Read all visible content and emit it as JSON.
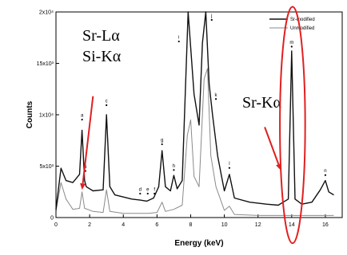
{
  "chart_data": {
    "type": "line",
    "xlabel": "Energy (keV)",
    "ylabel": "Counts",
    "xlim": [
      0,
      17
    ],
    "ylim": [
      0,
      20000
    ],
    "x_ticks": [
      "0",
      "2",
      "4",
      "6",
      "8",
      "10",
      "12",
      "14",
      "16"
    ],
    "x_tick_values": [
      0,
      2,
      4,
      6,
      8,
      10,
      12,
      14,
      16
    ],
    "y_ticks": [
      "0",
      "5x10³",
      "1x10⁴",
      "15x10³",
      "2x10⁴"
    ],
    "y_tick_values": [
      0,
      5000,
      10000,
      15000,
      20000
    ],
    "legend": {
      "position": "top-right"
    },
    "series": [
      {
        "name": "Sr-modified",
        "color": "#111111",
        "width": 1.4,
        "points": [
          [
            0,
            800
          ],
          [
            0.3,
            4800
          ],
          [
            0.6,
            3600
          ],
          [
            1.0,
            3400
          ],
          [
            1.4,
            4200
          ],
          [
            1.55,
            8500
          ],
          [
            1.7,
            3600
          ],
          [
            1.8,
            3000
          ],
          [
            2.2,
            2600
          ],
          [
            2.8,
            2700
          ],
          [
            3.0,
            10000
          ],
          [
            3.2,
            3000
          ],
          [
            3.5,
            2200
          ],
          [
            4.5,
            1800
          ],
          [
            5.0,
            1700
          ],
          [
            5.4,
            1600
          ],
          [
            5.8,
            1900
          ],
          [
            6.1,
            3000
          ],
          [
            6.3,
            6500
          ],
          [
            6.5,
            3000
          ],
          [
            6.8,
            2600
          ],
          [
            7.0,
            4100
          ],
          [
            7.2,
            2800
          ],
          [
            7.5,
            3600
          ],
          [
            7.85,
            20000
          ],
          [
            8.2,
            12000
          ],
          [
            8.5,
            9000
          ],
          [
            8.7,
            17000
          ],
          [
            8.9,
            20000
          ],
          [
            9.1,
            13000
          ],
          [
            9.3,
            10000
          ],
          [
            9.6,
            6000
          ],
          [
            10.0,
            2600
          ],
          [
            10.3,
            4200
          ],
          [
            10.6,
            1900
          ],
          [
            11.5,
            1500
          ],
          [
            12.5,
            1300
          ],
          [
            13.2,
            1200
          ],
          [
            13.8,
            1800
          ],
          [
            14.0,
            16200
          ],
          [
            14.2,
            1800
          ],
          [
            14.6,
            1300
          ],
          [
            15.2,
            1500
          ],
          [
            15.7,
            2700
          ],
          [
            16.0,
            3600
          ],
          [
            16.2,
            2500
          ],
          [
            16.5,
            2200
          ]
        ]
      },
      {
        "name": "Unmodified",
        "color": "#8a8a8a",
        "width": 1.0,
        "points": [
          [
            0,
            600
          ],
          [
            0.3,
            3400
          ],
          [
            0.6,
            1800
          ],
          [
            1.0,
            800
          ],
          [
            1.4,
            900
          ],
          [
            1.55,
            2500
          ],
          [
            1.7,
            900
          ],
          [
            2.2,
            600
          ],
          [
            2.8,
            500
          ],
          [
            3.0,
            2700
          ],
          [
            3.2,
            600
          ],
          [
            4.0,
            400
          ],
          [
            5.5,
            400
          ],
          [
            6.0,
            500
          ],
          [
            6.3,
            1500
          ],
          [
            6.5,
            600
          ],
          [
            7.0,
            800
          ],
          [
            7.5,
            1200
          ],
          [
            7.8,
            8000
          ],
          [
            8.0,
            9500
          ],
          [
            8.2,
            4000
          ],
          [
            8.5,
            3000
          ],
          [
            8.8,
            13500
          ],
          [
            9.0,
            14500
          ],
          [
            9.2,
            6000
          ],
          [
            9.5,
            3000
          ],
          [
            10.0,
            700
          ],
          [
            10.3,
            1100
          ],
          [
            10.6,
            300
          ],
          [
            12.0,
            200
          ],
          [
            14.0,
            200
          ],
          [
            16.0,
            200
          ],
          [
            16.5,
            200
          ]
        ]
      }
    ],
    "peak_labels": [
      {
        "text": "a",
        "x": 1.55,
        "y": 9800
      },
      {
        "text": "b",
        "x": 1.75,
        "y": 4800
      },
      {
        "text": "c",
        "x": 3.0,
        "y": 11200
      },
      {
        "text": "d",
        "x": 5.0,
        "y": 2600
      },
      {
        "text": "e",
        "x": 5.45,
        "y": 2600
      },
      {
        "text": "f",
        "x": 5.85,
        "y": 2600
      },
      {
        "text": "g",
        "x": 6.3,
        "y": 7400
      },
      {
        "text": "h",
        "x": 7.0,
        "y": 4900
      },
      {
        "text": "i",
        "x": 7.3,
        "y": 17400
      },
      {
        "text": "j",
        "x": 9.25,
        "y": 19500
      },
      {
        "text": "k",
        "x": 9.5,
        "y": 11800
      },
      {
        "text": "l",
        "x": 10.3,
        "y": 5100
      },
      {
        "text": "m",
        "x": 14.0,
        "y": 16900
      },
      {
        "text": "n",
        "x": 16.0,
        "y": 4400
      }
    ],
    "annotations": [
      {
        "text": "Sr-Lα"
      },
      {
        "text": "Si-Kα"
      },
      {
        "text": "Sr-Kα"
      }
    ],
    "highlight_ellipse": {
      "cx": 14.05,
      "cy": 9000,
      "rx": 0.75,
      "ry": 11500,
      "color": "#e02020"
    },
    "arrows": [
      {
        "from": [
          2.2,
          11800
        ],
        "to": [
          1.55,
          2700
        ],
        "color": "#e02020"
      },
      {
        "from": [
          12.4,
          8800
        ],
        "to": [
          13.35,
          4600
        ],
        "color": "#e02020"
      }
    ]
  }
}
